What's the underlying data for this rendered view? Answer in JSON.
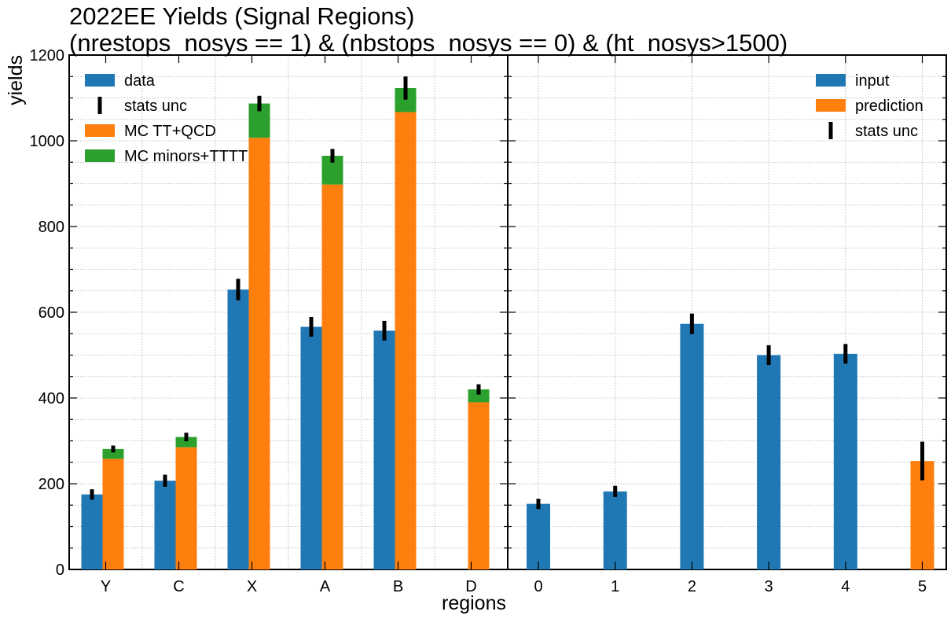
{
  "title": {
    "line1": "2022EE Yields (Signal Regions)",
    "line2": "(nrestops_nosys == 1) & (nbstops_nosys == 0) & (ht_nosys>1500)"
  },
  "colors": {
    "data": "#1f77b4",
    "mc_tt_qcd": "#ff7f0e",
    "mc_minors": "#2ca02c",
    "input": "#1f77b4",
    "prediction": "#ff7f0e",
    "errorbar": "#000000"
  },
  "chart_data": [
    {
      "type": "bar",
      "panel": "left",
      "xlabel": "regions",
      "ylabel": "yields",
      "ylim": [
        0,
        1200
      ],
      "yticks": [
        0,
        200,
        400,
        600,
        800,
        1000,
        1200
      ],
      "grid": true,
      "legend_placement": "top-left",
      "categories": [
        "Y",
        "C",
        "X",
        "A",
        "B",
        "D"
      ],
      "legend": [
        "data",
        "stats unc",
        "MC TT+QCD",
        "MC minors+TTTT"
      ],
      "series": [
        {
          "name": "data",
          "values": [
            175,
            207,
            653,
            566,
            557,
            null
          ],
          "errors": [
            12,
            14,
            25,
            23,
            23,
            null
          ]
        },
        {
          "name": "MC TT+QCD",
          "values": [
            258,
            285,
            1007,
            898,
            1067,
            390
          ]
        },
        {
          "name": "MC minors+TTTT",
          "values": [
            23,
            24,
            80,
            67,
            56,
            30
          ],
          "errors": [
            8,
            10,
            18,
            16,
            27,
            12
          ]
        }
      ]
    },
    {
      "type": "bar",
      "panel": "right",
      "xlabel": "regions",
      "ylim": [
        0,
        1200
      ],
      "grid": true,
      "legend_placement": "top-right",
      "categories": [
        "0",
        "1",
        "2",
        "3",
        "4",
        "5"
      ],
      "legend": [
        "input",
        "prediction",
        "stats unc"
      ],
      "series": [
        {
          "name": "input",
          "values": [
            153,
            182,
            573,
            500,
            503,
            null
          ],
          "errors": [
            12,
            13,
            24,
            23,
            23,
            null
          ]
        },
        {
          "name": "prediction",
          "values": [
            null,
            null,
            null,
            null,
            null,
            253
          ],
          "errors": [
            null,
            null,
            null,
            null,
            null,
            45
          ]
        }
      ]
    }
  ]
}
